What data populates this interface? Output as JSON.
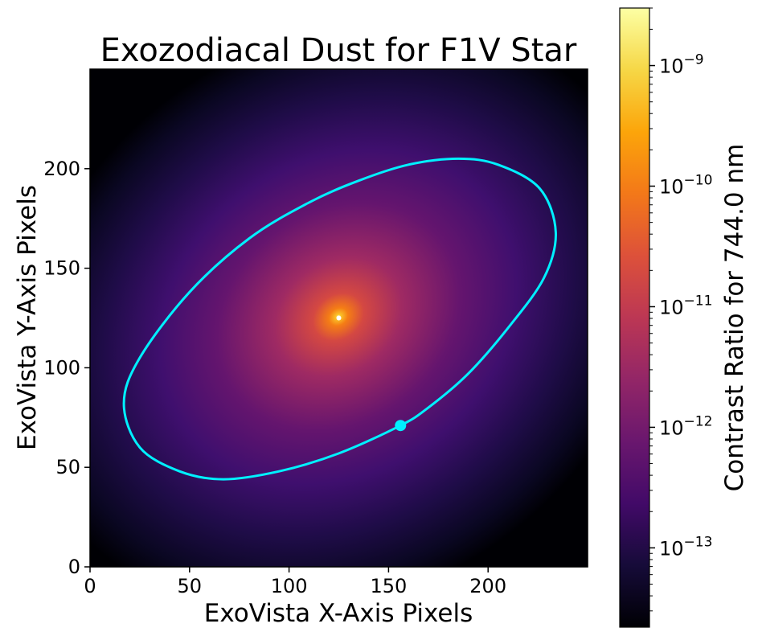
{
  "chart_data": {
    "type": "heatmap",
    "title": "Exozodiacal Dust for F1V Star",
    "xlabel": "ExoVista X-Axis Pixels",
    "ylabel": "ExoVista Y-Axis Pixels",
    "xlim": [
      0,
      250
    ],
    "ylim": [
      0,
      250
    ],
    "x_ticks": [
      0,
      50,
      100,
      150,
      200
    ],
    "y_ticks": [
      0,
      50,
      100,
      150,
      200
    ],
    "star_position": {
      "x": 125,
      "y": 125
    },
    "colormap": "inferno",
    "colorbar": {
      "label": "Contrast Ratio for 744.0 nm",
      "scale": "log",
      "range": [
        2.2e-14,
        3e-09
      ],
      "tick_exponents": [
        -13,
        -12,
        -11,
        -10,
        -9
      ]
    },
    "orbit": {
      "color": "#00f0ff",
      "points": [
        [
          156,
          71
        ],
        [
          170,
          80
        ],
        [
          190,
          97
        ],
        [
          210,
          120
        ],
        [
          228,
          145
        ],
        [
          234,
          168
        ],
        [
          226,
          190
        ],
        [
          205,
          202
        ],
        [
          185,
          205
        ],
        [
          160,
          202
        ],
        [
          135,
          194
        ],
        [
          110,
          183
        ],
        [
          80,
          165
        ],
        [
          50,
          138
        ],
        [
          25,
          105
        ],
        [
          17,
          82
        ],
        [
          25,
          60
        ],
        [
          45,
          48
        ],
        [
          67,
          44
        ],
        [
          95,
          48
        ],
        [
          125,
          57
        ],
        [
          156,
          71
        ]
      ]
    },
    "planet": {
      "x": 156,
      "y": 71,
      "color": "#00f0ff"
    }
  }
}
